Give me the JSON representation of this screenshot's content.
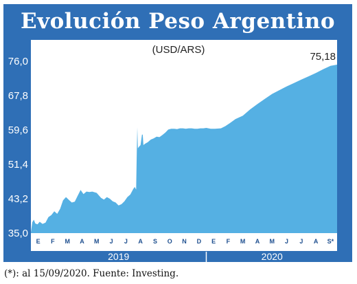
{
  "chart_data": {
    "type": "area",
    "title": "Evolución Peso Argentino",
    "unit": "(USD/ARS)",
    "ylim": [
      35.0,
      76.0
    ],
    "yticks": [
      "76,0",
      "67,8",
      "59,6",
      "51,4",
      "43,2",
      "35,0"
    ],
    "ytick_values": [
      76.0,
      67.8,
      59.6,
      51.4,
      43.2,
      35.0
    ],
    "month_labels_2019": [
      "E",
      "F",
      "M",
      "A",
      "M",
      "J",
      "J",
      "A",
      "S",
      "O",
      "N",
      "D"
    ],
    "month_labels_2020": [
      "E",
      "F",
      "M",
      "A",
      "M",
      "J",
      "J",
      "A",
      "S*"
    ],
    "years": [
      "2019",
      "2020"
    ],
    "last_value_label": "75,18",
    "color": "#55b0e3",
    "series": [
      {
        "x": [
          0,
          0.1,
          0.2,
          0.3,
          0.45,
          0.6,
          0.8,
          1.0,
          1.2,
          1.4,
          1.6,
          1.8,
          2.0,
          2.2,
          2.4,
          2.6,
          2.8,
          3.0,
          3.2,
          3.4,
          3.6,
          3.8,
          4.0,
          4.2,
          4.5,
          4.8,
          5.0,
          5.2,
          5.4,
          5.6,
          5.8,
          6.0,
          6.2,
          6.4,
          6.6,
          6.8,
          7.0,
          7.1,
          7.2,
          7.25,
          7.28,
          7.32,
          7.37,
          7.4,
          7.5,
          7.6,
          7.65,
          7.7,
          7.8,
          8.0,
          8.2,
          8.4,
          8.6,
          8.8,
          9.0,
          9.2,
          9.4,
          9.6,
          9.8,
          10.0,
          10.2,
          10.4,
          10.6,
          10.8,
          11.0,
          11.2,
          11.4,
          11.6,
          11.8,
          12.0,
          12.3,
          12.6,
          13.0,
          13.3,
          13.6,
          14.0,
          14.5,
          15.0,
          15.5,
          16.0,
          16.5,
          17.0,
          17.5,
          18.0,
          18.5,
          19.0,
          19.5,
          20.0,
          20.5,
          20.95
        ],
        "values": [
          35.2,
          37.6,
          38.2,
          37.3,
          37.1,
          37.7,
          37.2,
          37.5,
          38.8,
          39.3,
          40.2,
          39.6,
          40.8,
          42.8,
          43.6,
          42.9,
          42.3,
          42.5,
          43.9,
          45.3,
          44.3,
          44.9,
          44.8,
          44.9,
          44.6,
          43.4,
          43.0,
          43.6,
          43.2,
          42.6,
          42.3,
          41.6,
          41.9,
          42.6,
          43.6,
          44.2,
          45.5,
          46.0,
          45.4,
          55.0,
          60.2,
          55.2,
          55.5,
          55.6,
          56.0,
          58.5,
          58.5,
          56.0,
          56.3,
          56.7,
          57.3,
          57.6,
          58.0,
          57.9,
          58.4,
          59.0,
          59.7,
          59.9,
          59.9,
          59.8,
          60.0,
          60.0,
          59.9,
          60.0,
          60.0,
          59.9,
          59.9,
          60.0,
          60.0,
          60.1,
          59.9,
          59.9,
          60.0,
          60.5,
          61.2,
          62.2,
          63.0,
          64.5,
          65.8,
          67.0,
          68.2,
          69.1,
          70.0,
          70.8,
          71.6,
          72.4,
          73.2,
          74.1,
          74.9,
          75.18
        ]
      }
    ]
  },
  "footnote": "(*): al 15/09/2020. Fuente: Investing."
}
